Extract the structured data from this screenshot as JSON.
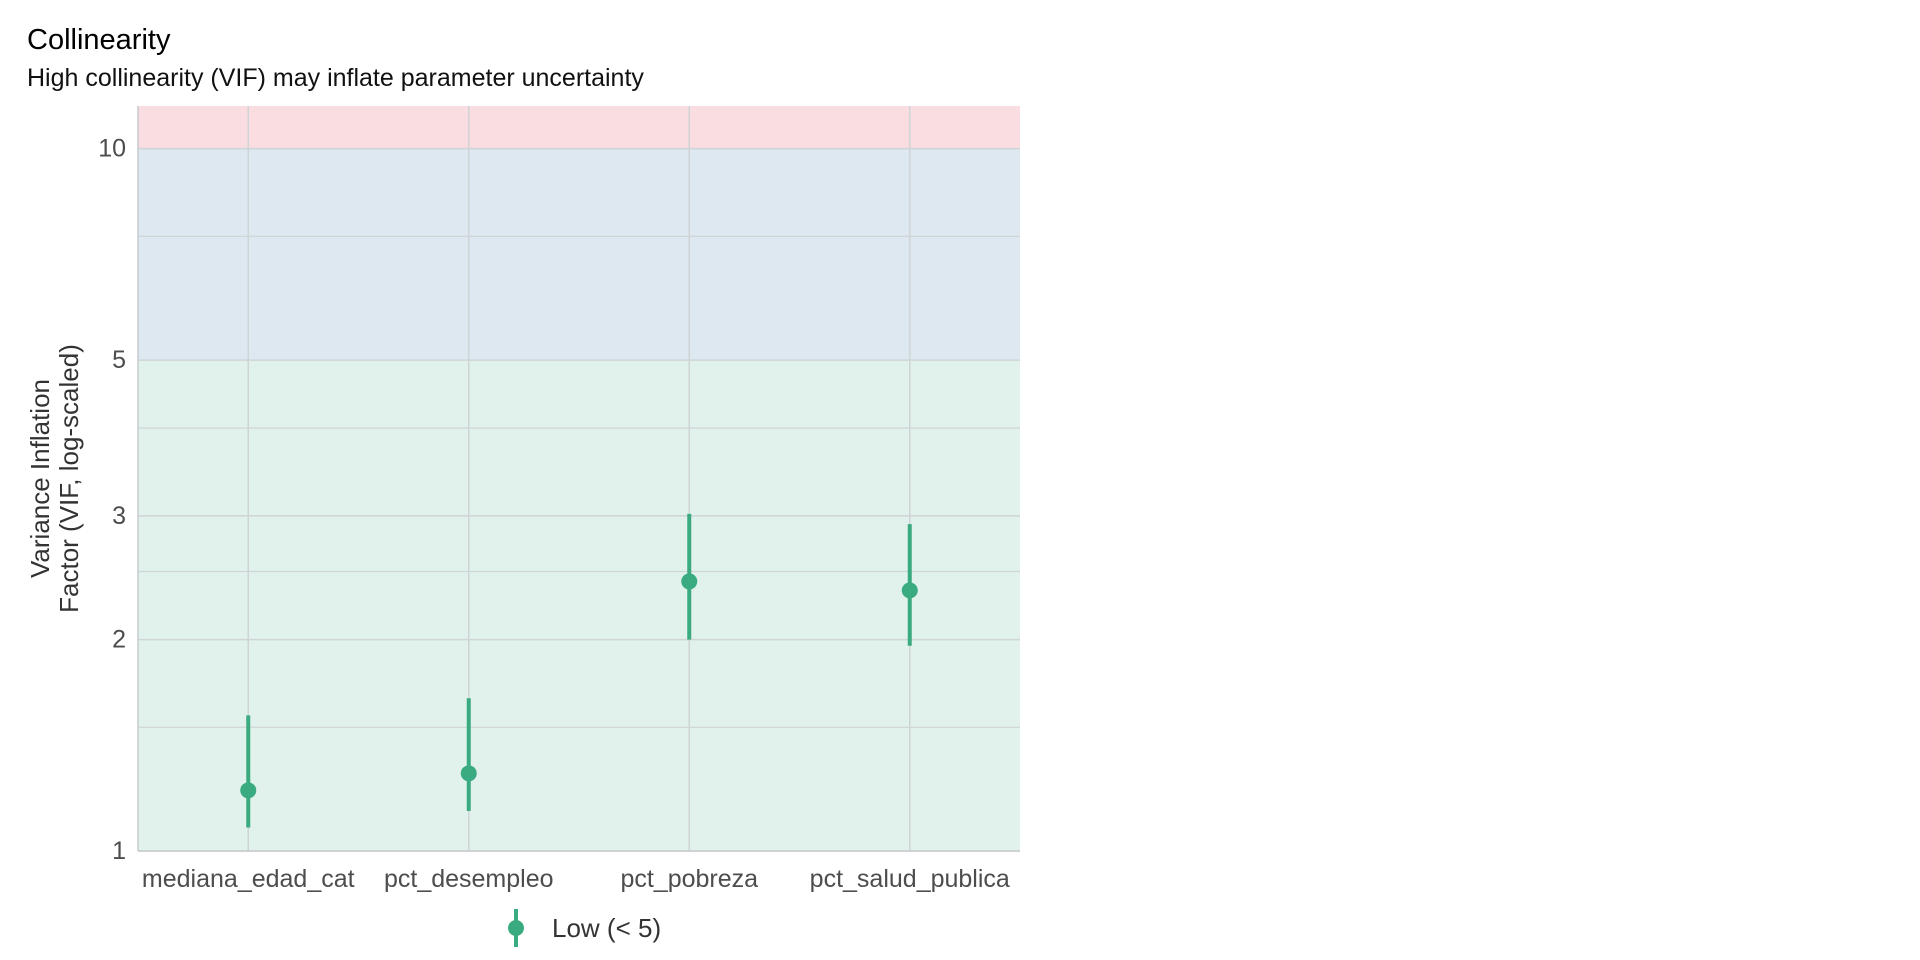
{
  "chart_data": {
    "type": "scatter",
    "title": "Collinearity",
    "subtitle": "High collinearity (VIF) may inflate parameter uncertainty",
    "xlabel": "",
    "ylabel_lines": [
      "Variance Inflation",
      "Factor (VIF, log-scaled)"
    ],
    "y_scale": "log",
    "ylim": [
      1,
      11.5
    ],
    "y_ticks": [
      1,
      2,
      3,
      5,
      10
    ],
    "y_minor_gridlines": [
      1.5,
      2.5,
      4,
      7.5
    ],
    "grid": true,
    "categories": [
      "mediana_edad_cat",
      "pct_desempleo",
      "pct_pobreza",
      "pct_salud_publica"
    ],
    "series": [
      {
        "name": "Low (< 5)",
        "color": "#3aaa80",
        "values": [
          1.22,
          1.29,
          2.42,
          2.35
        ],
        "ci_low": [
          1.08,
          1.14,
          2.0,
          1.96
        ],
        "ci_high": [
          1.56,
          1.65,
          3.02,
          2.92
        ]
      }
    ],
    "bands": [
      {
        "from": 1,
        "to": 5,
        "color": "#e1f2ec"
      },
      {
        "from": 5,
        "to": 10,
        "color": "#dde8f1"
      },
      {
        "from": 10,
        "to": 11.5,
        "color": "#f9dde0"
      }
    ],
    "legend_position": "bottom"
  }
}
